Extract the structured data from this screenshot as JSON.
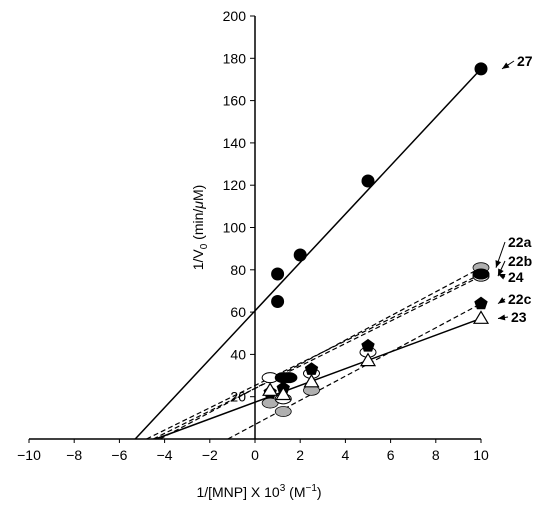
{
  "chart_data": {
    "type": "scatter",
    "xlabel": "1/[MNP] X 10^3 (M^-1)",
    "ylabel": "1/V_0 (min/μM)",
    "xlim": [
      -10,
      10
    ],
    "ylim": [
      0,
      200
    ],
    "x_ticks": [
      -10,
      -8,
      -6,
      -4,
      -2,
      0,
      2,
      4,
      6,
      8,
      10
    ],
    "y_ticks": [
      20,
      40,
      60,
      80,
      100,
      120,
      140,
      160,
      180,
      200
    ],
    "grid": false,
    "series": [
      {
        "name": "27",
        "marker": "filled-circle",
        "line": "solid",
        "points": [
          [
            1,
            65
          ],
          [
            1,
            78
          ],
          [
            2,
            87
          ],
          [
            5,
            122
          ],
          [
            10,
            175
          ]
        ],
        "fit": [
          [
            -5.3,
            0
          ],
          [
            10,
            175
          ]
        ]
      },
      {
        "name": "22a",
        "marker": "gray-ellipse",
        "line": "dashed",
        "points": [
          [
            0.67,
            17
          ],
          [
            1.25,
            13
          ],
          [
            2.5,
            23
          ],
          [
            10,
            81
          ]
        ],
        "fit": [
          [
            -4.2,
            0
          ],
          [
            10,
            81
          ]
        ]
      },
      {
        "name": "22b",
        "marker": "white-ellipse",
        "line": "dashed",
        "points": [
          [
            0.67,
            29
          ],
          [
            1.25,
            19
          ],
          [
            2.5,
            31
          ],
          [
            5,
            41
          ],
          [
            10,
            77
          ]
        ],
        "fit": [
          [
            -4.5,
            0
          ],
          [
            10,
            77
          ]
        ]
      },
      {
        "name": "24",
        "marker": "black-ellipse",
        "line": "dashed",
        "points": [
          [
            1.25,
            29
          ],
          [
            1.5,
            29
          ],
          [
            10,
            78
          ]
        ],
        "fit": [
          [
            -4.8,
            0
          ],
          [
            10,
            78
          ]
        ]
      },
      {
        "name": "22c",
        "marker": "filled-pentagon",
        "line": "dashed",
        "points": [
          [
            0.67,
            22
          ],
          [
            1.25,
            24
          ],
          [
            2.5,
            33
          ],
          [
            5,
            44
          ],
          [
            10,
            64
          ]
        ],
        "fit": [
          [
            -1.2,
            0
          ],
          [
            10,
            64
          ]
        ]
      },
      {
        "name": "23",
        "marker": "open-triangle",
        "line": "solid",
        "points": [
          [
            0.67,
            23
          ],
          [
            1.25,
            21
          ],
          [
            2.5,
            27
          ],
          [
            5,
            37
          ],
          [
            10,
            57
          ]
        ],
        "fit": [
          [
            -4.4,
            0
          ],
          [
            10,
            57
          ]
        ]
      }
    ]
  },
  "colors": {
    "gray_fill": "#b0b0b0",
    "line": "#000000"
  }
}
